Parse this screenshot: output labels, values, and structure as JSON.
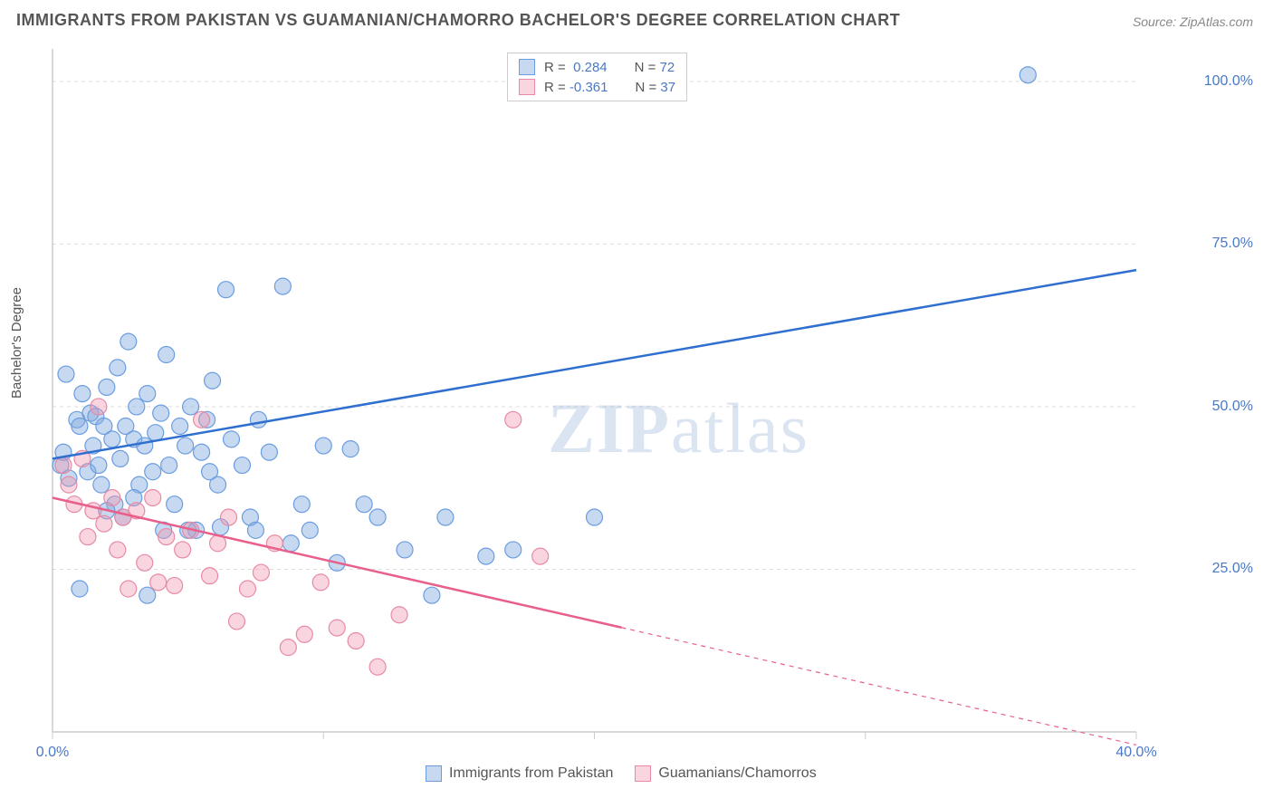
{
  "title": "IMMIGRANTS FROM PAKISTAN VS GUAMANIAN/CHAMORRO BACHELOR'S DEGREE CORRELATION CHART",
  "source": "Source: ZipAtlas.com",
  "watermark": "ZIPatlas",
  "chart": {
    "type": "scatter",
    "xlim": [
      0,
      40
    ],
    "ylim": [
      0,
      105
    ],
    "xticks": [
      {
        "v": 0,
        "label": "0.0%"
      },
      {
        "v": 40,
        "label": "40.0%"
      }
    ],
    "xticks_minor": [
      10,
      20,
      30
    ],
    "yticks": [
      {
        "v": 25,
        "label": "25.0%"
      },
      {
        "v": 50,
        "label": "50.0%"
      },
      {
        "v": 75,
        "label": "75.0%"
      },
      {
        "v": 100,
        "label": "100.0%"
      }
    ],
    "ylabel": "Bachelor's Degree",
    "background_color": "#ffffff",
    "grid_color": "#dddddd",
    "axis_color": "#cccccc",
    "marker_radius": 9,
    "marker_stroke_width": 1.2,
    "line_width": 2.5,
    "series": [
      {
        "id": "pakistan",
        "label": "Immigrants from Pakistan",
        "fill": "rgba(130,170,225,0.45)",
        "stroke": "#6a9de0",
        "line_color": "#2f6fd0",
        "R": "0.284",
        "N": "72",
        "regression": {
          "x1": 0,
          "y1": 42,
          "x2": 40,
          "y2": 71
        },
        "regression_dashed_from": null,
        "points": [
          [
            0.3,
            41
          ],
          [
            0.4,
            43
          ],
          [
            0.5,
            55
          ],
          [
            0.6,
            39
          ],
          [
            0.9,
            48
          ],
          [
            1.0,
            47
          ],
          [
            1.1,
            52
          ],
          [
            1.3,
            40
          ],
          [
            1.4,
            49
          ],
          [
            1.5,
            44
          ],
          [
            1.6,
            48.5
          ],
          [
            1.7,
            41
          ],
          [
            1.8,
            38
          ],
          [
            1.9,
            47
          ],
          [
            2.0,
            53
          ],
          [
            2.2,
            45
          ],
          [
            2.4,
            56
          ],
          [
            2.5,
            42
          ],
          [
            2.6,
            33
          ],
          [
            2.7,
            47
          ],
          [
            2.8,
            60
          ],
          [
            3.0,
            45
          ],
          [
            3.1,
            50
          ],
          [
            3.2,
            38
          ],
          [
            3.4,
            44
          ],
          [
            3.5,
            52
          ],
          [
            3.7,
            40
          ],
          [
            3.8,
            46
          ],
          [
            4.0,
            49
          ],
          [
            4.2,
            58
          ],
          [
            4.3,
            41
          ],
          [
            4.5,
            35
          ],
          [
            4.7,
            47
          ],
          [
            4.9,
            44
          ],
          [
            5.1,
            50
          ],
          [
            5.3,
            31
          ],
          [
            5.5,
            43
          ],
          [
            5.7,
            48
          ],
          [
            5.9,
            54
          ],
          [
            6.1,
            38
          ],
          [
            6.4,
            68
          ],
          [
            6.6,
            45
          ],
          [
            7.0,
            41
          ],
          [
            7.3,
            33
          ],
          [
            7.6,
            48
          ],
          [
            8.0,
            43
          ],
          [
            8.5,
            68.5
          ],
          [
            8.8,
            29
          ],
          [
            9.2,
            35
          ],
          [
            9.5,
            31
          ],
          [
            10.0,
            44
          ],
          [
            10.5,
            26
          ],
          [
            11.0,
            43.5
          ],
          [
            11.5,
            35
          ],
          [
            12.0,
            33
          ],
          [
            13.0,
            28
          ],
          [
            14.0,
            21
          ],
          [
            14.5,
            33
          ],
          [
            16.0,
            27
          ],
          [
            17.0,
            28
          ],
          [
            20.0,
            33
          ],
          [
            1.0,
            22
          ],
          [
            2.3,
            35
          ],
          [
            3.0,
            36
          ],
          [
            4.1,
            31
          ],
          [
            5.0,
            31
          ],
          [
            6.2,
            31.5
          ],
          [
            3.5,
            21
          ],
          [
            5.8,
            40
          ],
          [
            7.5,
            31
          ],
          [
            36.0,
            101
          ],
          [
            2.0,
            34
          ]
        ]
      },
      {
        "id": "guamanian",
        "label": "Guamanians/Chamorros",
        "fill": "rgba(240,150,175,0.4)",
        "stroke": "#e88aa5",
        "line_color": "#e85f8a",
        "R": "-0.361",
        "N": "37",
        "regression": {
          "x1": 0,
          "y1": 36,
          "x2": 40,
          "y2": -2
        },
        "regression_dashed_from": 21,
        "points": [
          [
            0.4,
            41
          ],
          [
            0.6,
            38
          ],
          [
            0.8,
            35
          ],
          [
            1.1,
            42
          ],
          [
            1.3,
            30
          ],
          [
            1.5,
            34
          ],
          [
            1.7,
            50
          ],
          [
            1.9,
            32
          ],
          [
            2.2,
            36
          ],
          [
            2.4,
            28
          ],
          [
            2.6,
            33
          ],
          [
            2.8,
            22
          ],
          [
            3.1,
            34
          ],
          [
            3.4,
            26
          ],
          [
            3.7,
            36
          ],
          [
            3.9,
            23
          ],
          [
            4.2,
            30
          ],
          [
            4.5,
            22.5
          ],
          [
            4.8,
            28
          ],
          [
            5.1,
            31
          ],
          [
            5.5,
            48
          ],
          [
            5.8,
            24
          ],
          [
            6.1,
            29
          ],
          [
            6.5,
            33
          ],
          [
            6.8,
            17
          ],
          [
            7.2,
            22
          ],
          [
            7.7,
            24.5
          ],
          [
            8.2,
            29
          ],
          [
            8.7,
            13
          ],
          [
            9.3,
            15
          ],
          [
            9.9,
            23
          ],
          [
            10.5,
            16
          ],
          [
            11.2,
            14
          ],
          [
            12.0,
            10
          ],
          [
            17.0,
            48
          ],
          [
            18.0,
            27
          ],
          [
            12.8,
            18
          ]
        ]
      }
    ]
  },
  "legend_top": {
    "rows": [
      {
        "swatch_fill": "rgba(130,170,225,0.45)",
        "swatch_stroke": "#6a9de0",
        "R_pad": " ",
        "R": "0.284",
        "N": "72"
      },
      {
        "swatch_fill": "rgba(240,150,175,0.4)",
        "swatch_stroke": "#e88aa5",
        "R_pad": "",
        "R": "-0.361",
        "N": "37"
      }
    ]
  },
  "legend_bottom": {
    "items": [
      {
        "swatch_fill": "rgba(130,170,225,0.45)",
        "swatch_stroke": "#6a9de0",
        "label": "Immigrants from Pakistan"
      },
      {
        "swatch_fill": "rgba(240,150,175,0.4)",
        "swatch_stroke": "#e88aa5",
        "label": "Guamanians/Chamorros"
      }
    ]
  }
}
